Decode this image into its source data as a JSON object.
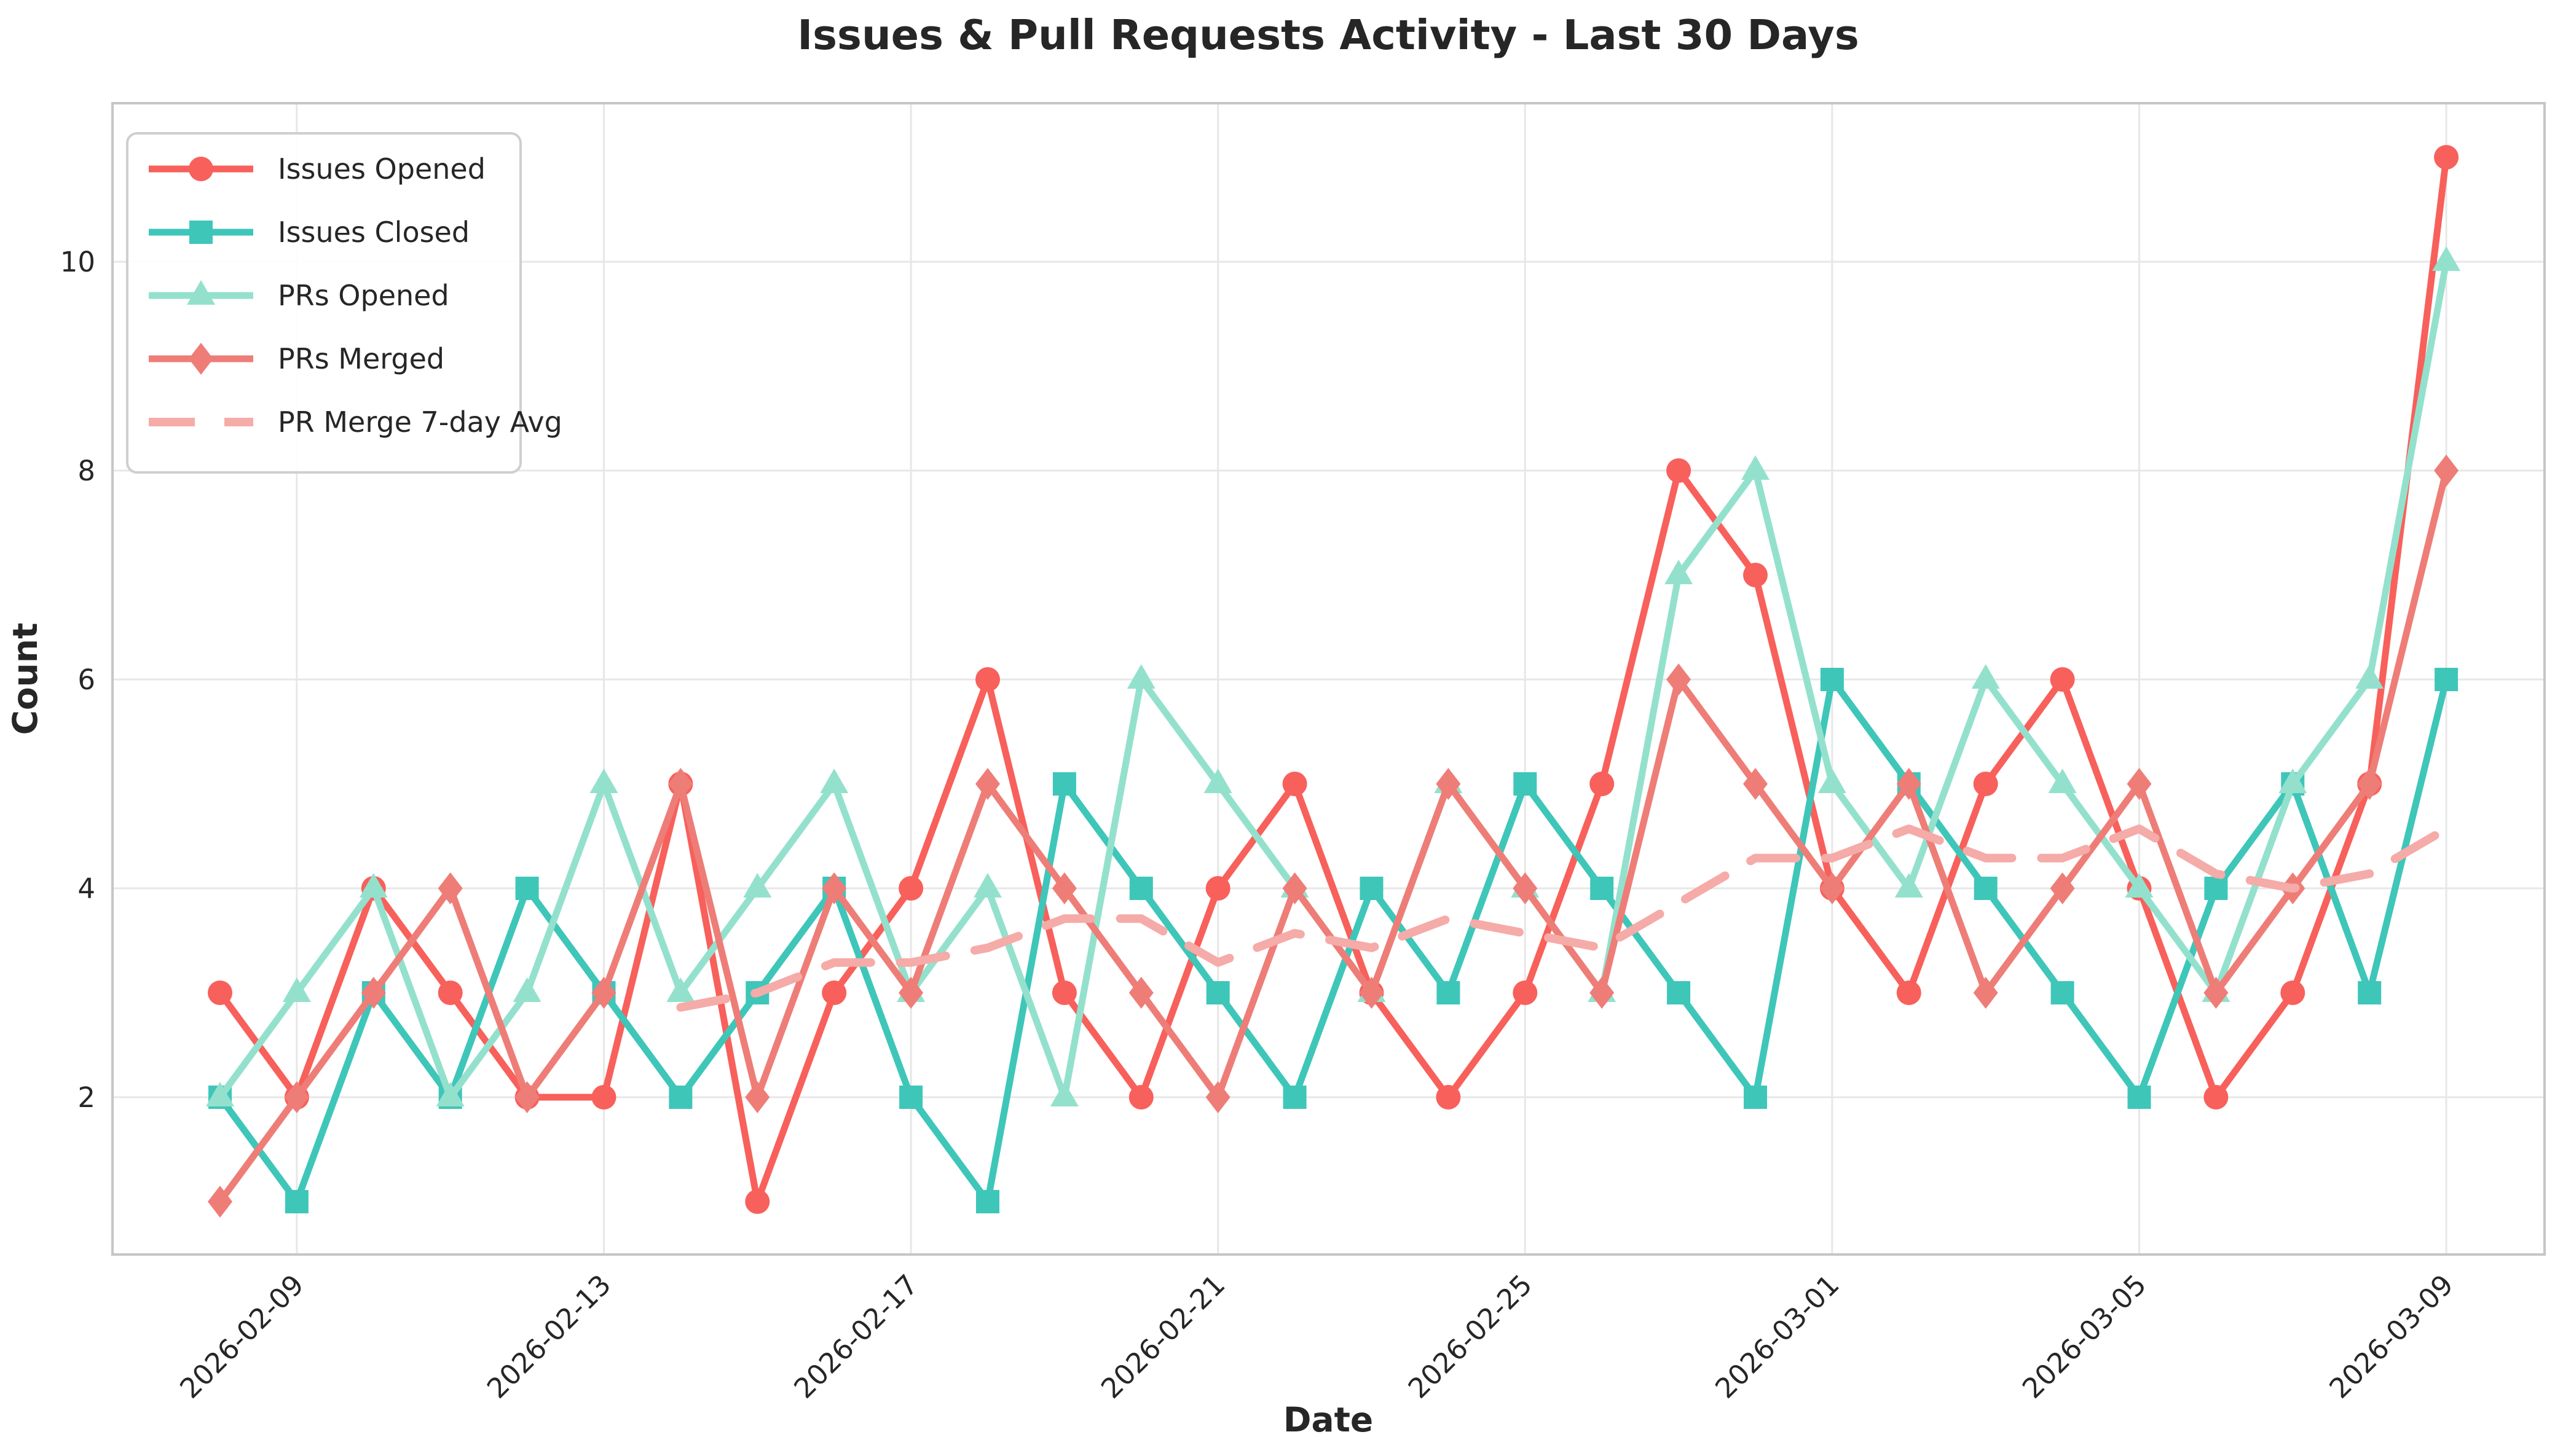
{
  "title": "Issues & Pull Requests Activity - Last 30 Days",
  "x_axis": {
    "label": "Date"
  },
  "y_axis": {
    "label": "Count",
    "ticks": [
      2,
      4,
      6,
      8,
      10
    ]
  },
  "legend": {
    "items": [
      "Issues Opened",
      "Issues Closed",
      "PRs Opened",
      "PRs Merged",
      "PR Merge 7-day Avg"
    ]
  },
  "colors": {
    "issues_opened": "#F8605B",
    "issues_closed": "#3EC6B9",
    "prs_opened": "#93E1CD",
    "prs_merged": "#EE7D78",
    "pr_merge_avg": "#F5ABA8",
    "grid": "#E7E7E7",
    "spine": "#C6C6C6",
    "text": "#262626",
    "background": "#FFFFFF"
  },
  "chart_data": {
    "type": "line",
    "title": "Issues & Pull Requests Activity - Last 30 Days",
    "xlabel": "Date",
    "ylabel": "Count",
    "grid": true,
    "legend_position": "upper-left",
    "ylim": [
      0.4,
      11.6
    ],
    "x": [
      "2026-02-08",
      "2026-02-09",
      "2026-02-10",
      "2026-02-11",
      "2026-02-12",
      "2026-02-13",
      "2026-02-14",
      "2026-02-15",
      "2026-02-16",
      "2026-02-17",
      "2026-02-18",
      "2026-02-19",
      "2026-02-20",
      "2026-02-21",
      "2026-02-22",
      "2026-02-23",
      "2026-02-24",
      "2026-02-25",
      "2026-02-26",
      "2026-02-27",
      "2026-02-28",
      "2026-03-01",
      "2026-03-02",
      "2026-03-03",
      "2026-03-04",
      "2026-03-05",
      "2026-03-06",
      "2026-03-07",
      "2026-03-08",
      "2026-03-09"
    ],
    "xtick_indices": [
      1,
      5,
      9,
      13,
      17,
      21,
      25,
      29
    ],
    "xtick_labels": [
      "2026-02-09",
      "2026-02-13",
      "2026-02-17",
      "2026-02-21",
      "2026-02-25",
      "2026-03-01",
      "2026-03-05",
      "2026-03-09"
    ],
    "series": [
      {
        "name": "Issues Opened",
        "color": "#F8605B",
        "marker": "circle",
        "dashed": false,
        "values": [
          3,
          2,
          4,
          3,
          2,
          2,
          5,
          1,
          3,
          4,
          6,
          3,
          2,
          4,
          5,
          3,
          2,
          3,
          5,
          8,
          7,
          4,
          3,
          5,
          6,
          4,
          2,
          3,
          5,
          11
        ]
      },
      {
        "name": "Issues Closed",
        "color": "#3EC6B9",
        "marker": "square",
        "dashed": false,
        "values": [
          2,
          1,
          3,
          2,
          4,
          3,
          2,
          3,
          4,
          2,
          1,
          5,
          4,
          3,
          2,
          4,
          3,
          5,
          4,
          3,
          2,
          6,
          5,
          4,
          3,
          2,
          4,
          5,
          3,
          6
        ]
      },
      {
        "name": "PRs Opened",
        "color": "#93E1CD",
        "marker": "triangle",
        "dashed": false,
        "values": [
          2,
          3,
          4,
          2,
          3,
          5,
          3,
          4,
          5,
          3,
          4,
          2,
          6,
          5,
          4,
          3,
          5,
          4,
          3,
          7,
          8,
          5,
          4,
          6,
          5,
          4,
          3,
          5,
          6,
          10
        ]
      },
      {
        "name": "PRs Merged",
        "color": "#EE7D78",
        "marker": "diamond",
        "dashed": false,
        "values": [
          1,
          2,
          3,
          4,
          2,
          3,
          5,
          2,
          4,
          3,
          5,
          4,
          3,
          2,
          4,
          3,
          5,
          4,
          3,
          6,
          5,
          4,
          5,
          3,
          4,
          5,
          3,
          4,
          5,
          8
        ]
      },
      {
        "name": "PR Merge 7-day Avg",
        "color": "#F5ABA8",
        "marker": "none",
        "dashed": true,
        "values": [
          null,
          null,
          null,
          null,
          null,
          null,
          2.86,
          3.0,
          3.29,
          3.29,
          3.43,
          3.71,
          3.71,
          3.29,
          3.57,
          3.43,
          3.71,
          3.57,
          3.43,
          3.86,
          4.29,
          4.29,
          4.57,
          4.29,
          4.29,
          4.57,
          4.14,
          4.0,
          4.14,
          4.57
        ]
      }
    ]
  }
}
